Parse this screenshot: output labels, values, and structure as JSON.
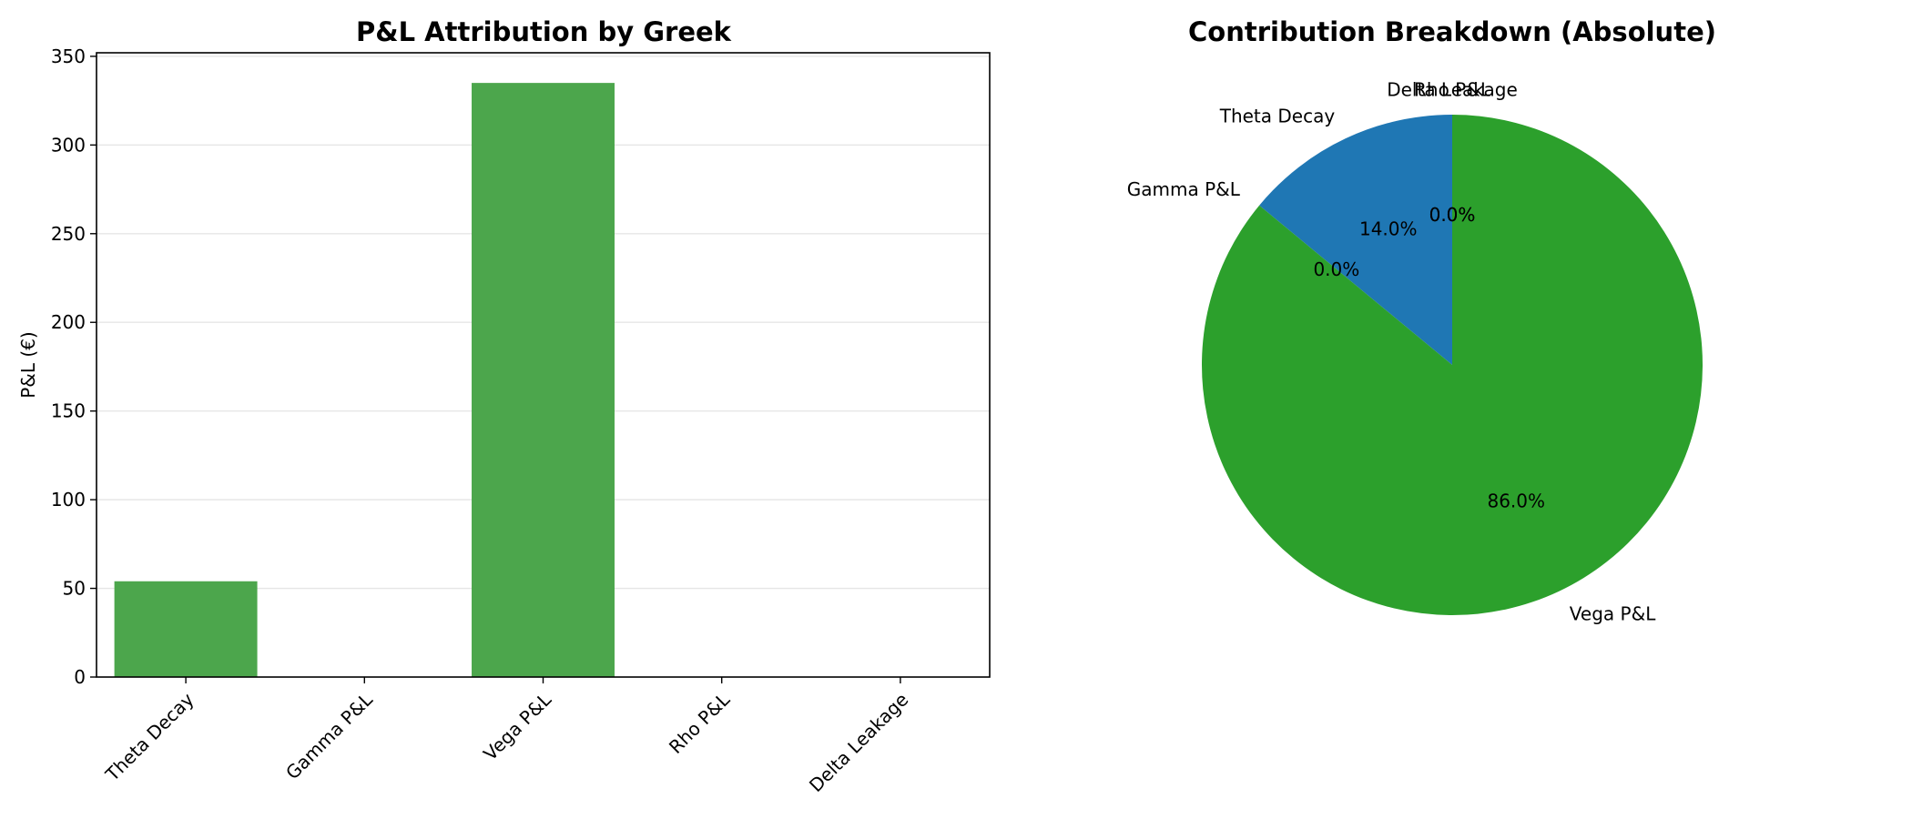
{
  "chart_data": [
    {
      "type": "bar",
      "title": "P&L Attribution by Greek",
      "xlabel": "",
      "ylabel": "P&L (€)",
      "categories": [
        "Theta Decay",
        "Gamma P&L",
        "Vega P&L",
        "Rho P&L",
        "Delta Leakage"
      ],
      "values": [
        54,
        0,
        335,
        0,
        0
      ],
      "ylim": [
        0,
        352
      ],
      "yticks": [
        0,
        50,
        100,
        150,
        200,
        250,
        300,
        350
      ],
      "grid": "horizontal",
      "bar_color": "#4ca64c"
    },
    {
      "type": "pie",
      "title": "Contribution Breakdown (Absolute)",
      "labels": [
        "Theta Decay",
        "Gamma P&L",
        "Vega P&L",
        "Rho P&L",
        "Delta Leakage"
      ],
      "values": [
        14.0,
        0.0,
        86.0,
        0.0,
        0.0
      ],
      "percent_labels": [
        "14.0%",
        "0.0%",
        "86.0%",
        "0.0%",
        "0.0%"
      ],
      "colors": [
        "#1f77b4",
        "#ff7f0e",
        "#2ca02c",
        "#d62728",
        "#9467bd"
      ]
    }
  ]
}
